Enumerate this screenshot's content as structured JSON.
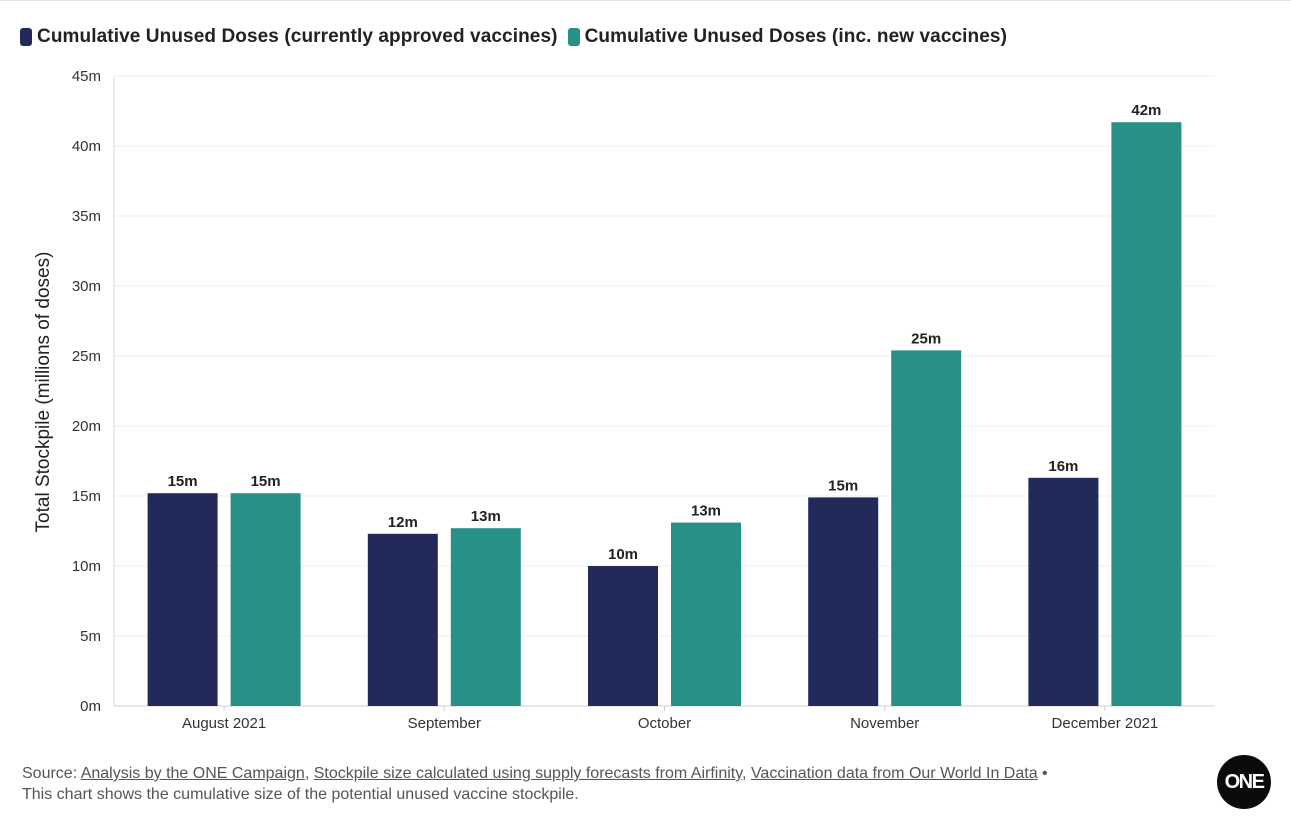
{
  "legend": [
    {
      "label": "Cumulative Unused Doses (currently approved vaccines)",
      "color": "#222a5a"
    },
    {
      "label": "Cumulative Unused Doses (inc. new vaccines)",
      "color": "#279188"
    }
  ],
  "chart_data": {
    "type": "bar",
    "categories": [
      "August 2021",
      "September",
      "October",
      "November",
      "December 2021"
    ],
    "series": [
      {
        "name": "Cumulative Unused Doses (currently approved vaccines)",
        "color": "#222a5a",
        "values": [
          15.2,
          12.3,
          10.0,
          14.9,
          16.3
        ],
        "labels": [
          "15m",
          "12m",
          "10m",
          "15m",
          "16m"
        ]
      },
      {
        "name": "Cumulative Unused Doses (inc. new vaccines)",
        "color": "#279188",
        "values": [
          15.2,
          12.7,
          13.1,
          25.4,
          41.7
        ],
        "labels": [
          "15m",
          "13m",
          "13m",
          "25m",
          "42m"
        ]
      }
    ],
    "ylabel": "Total Stockpile (millions of doses)",
    "ylim": [
      0,
      45
    ],
    "yticks": [
      "0m",
      "5m",
      "10m",
      "15m",
      "20m",
      "25m",
      "30m",
      "35m",
      "40m",
      "45m"
    ],
    "grid": true,
    "legend_position": "top-left"
  },
  "footer": {
    "source_prefix": "Source: ",
    "link1": "Analysis by the ONE Campaign",
    "sep1": ", ",
    "link2": "Stockpile size calculated using supply forecasts from Airfinity",
    "sep2": ", ",
    "link3": "Vaccination data from Our World In Data",
    "bullet": " •",
    "note": "This chart shows the cumulative size of the potential unused vaccine stockpile."
  },
  "logo": {
    "text": "ONE"
  }
}
